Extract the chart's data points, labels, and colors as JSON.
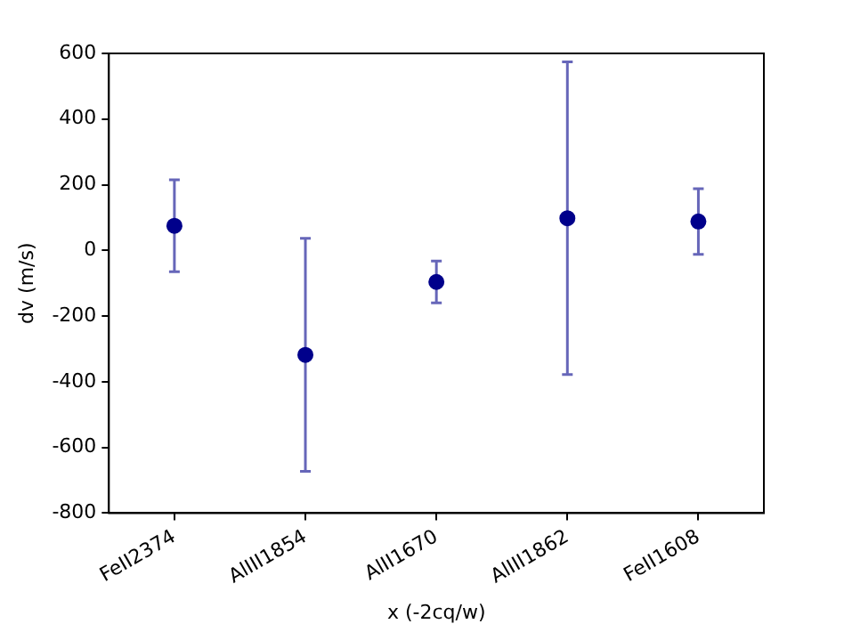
{
  "chart_data": {
    "type": "scatter",
    "xlabel": "x (-2cq/w)",
    "ylabel": "dv (m/s)",
    "categories": [
      "FeII2374",
      "AlIII1854",
      "AlII1670",
      "AlIII1862",
      "FeII1608"
    ],
    "series": [
      {
        "color": "#00008b",
        "values": [
          75,
          -318,
          -96,
          98,
          88
        ],
        "errors": [
          140,
          355,
          64,
          476,
          100
        ]
      }
    ],
    "ylim": [
      -800,
      600
    ],
    "yticks": [
      -800,
      -600,
      -400,
      -200,
      0,
      200,
      400,
      600
    ],
    "grid": false,
    "legend": false,
    "marker": "circle"
  }
}
